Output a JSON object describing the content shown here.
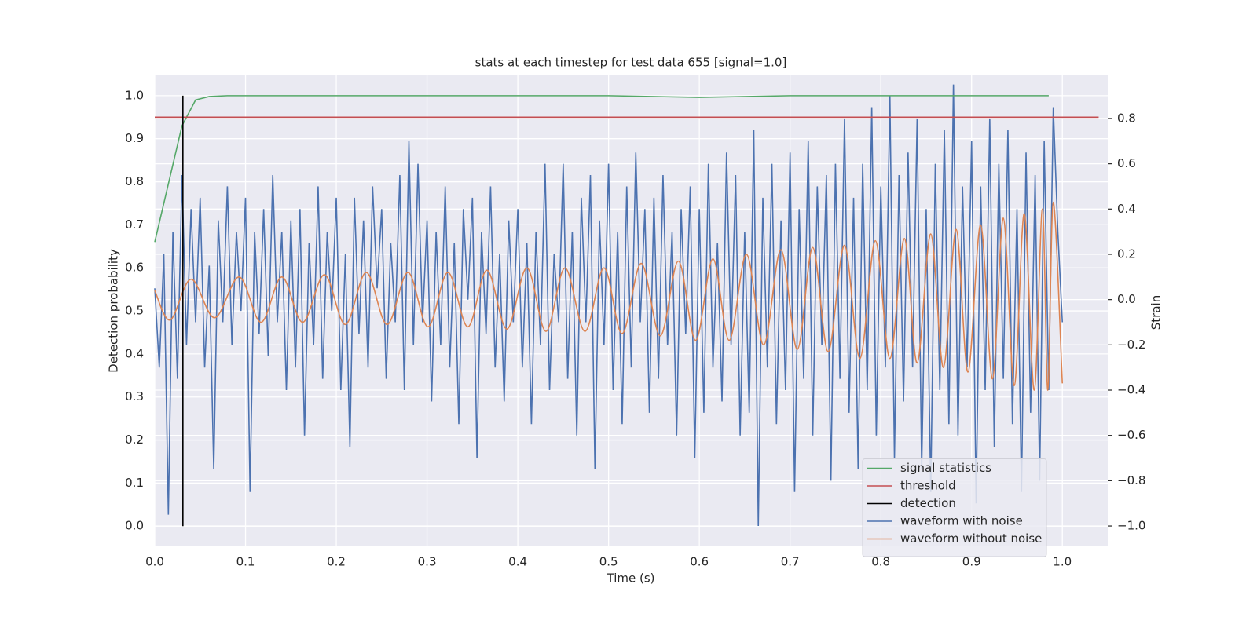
{
  "chart_data": {
    "type": "line",
    "title": "stats at each timestep for test data 655 [signal=1.0]",
    "xlabel": "Time (s)",
    "ylabel": "Detection probability",
    "y2label": "Strain",
    "xlim": [
      0,
      1.05
    ],
    "ylim": [
      -0.047,
      1.049
    ],
    "y2lim": [
      -1.09,
      0.994
    ],
    "xticks": [
      {
        "value": 0,
        "label": "0.0"
      },
      0.1,
      0.2,
      0.3,
      0.4,
      0.5,
      0.6,
      0.7,
      0.8,
      0.9,
      {
        "value": 1,
        "label": "1.0"
      }
    ],
    "yticks": [
      {
        "value": 0,
        "label": "0.0"
      },
      0.1,
      0.2,
      0.3,
      0.4,
      0.5,
      0.6,
      0.7,
      0.8,
      0.9,
      {
        "value": 1,
        "label": "1.0"
      }
    ],
    "y2ticks": [
      {
        "value": -1,
        "label": "−1.0"
      },
      {
        "value": -0.8,
        "label": "−0.8"
      },
      {
        "value": -0.6,
        "label": "−0.6"
      },
      {
        "value": -0.4,
        "label": "−0.4"
      },
      {
        "value": -0.2,
        "label": "−0.2"
      },
      {
        "value": 0,
        "label": "0.0"
      },
      0.2,
      0.4,
      0.6,
      0.8
    ],
    "grid": true,
    "legend": "lower right",
    "series": [
      {
        "name": "signal statistics",
        "color": "#55a868",
        "axis": "y",
        "x": [
          0,
          0.03,
          0.045,
          0.06,
          0.08,
          0.5,
          0.6,
          0.7,
          0.985
        ],
        "values": [
          0.66,
          0.93,
          0.99,
          0.998,
          1.0,
          1.0,
          0.996,
          1.0,
          1.0
        ]
      },
      {
        "name": "threshold",
        "color": "#c44e52",
        "axis": "y",
        "x": [
          0,
          1.04
        ],
        "values": [
          0.95,
          0.95
        ]
      },
      {
        "name": "detection",
        "color": "#000000",
        "axis": "y",
        "x": [
          0.031,
          0.031
        ],
        "values": [
          0,
          1
        ]
      },
      {
        "name": "waveform with noise",
        "color": "#4c72b0",
        "axis": "y2",
        "x": [
          0,
          0.005,
          0.01,
          0.015,
          0.02,
          0.025,
          0.03,
          0.035,
          0.04,
          0.045,
          0.05,
          0.055,
          0.06,
          0.065,
          0.07,
          0.075,
          0.08,
          0.085,
          0.09,
          0.095,
          0.1,
          0.105,
          0.11,
          0.115,
          0.12,
          0.125,
          0.13,
          0.135,
          0.14,
          0.145,
          0.15,
          0.155,
          0.16,
          0.165,
          0.17,
          0.175,
          0.18,
          0.185,
          0.19,
          0.195,
          0.2,
          0.205,
          0.21,
          0.215,
          0.22,
          0.225,
          0.23,
          0.235,
          0.24,
          0.245,
          0.25,
          0.255,
          0.26,
          0.265,
          0.27,
          0.275,
          0.28,
          0.285,
          0.29,
          0.295,
          0.3,
          0.305,
          0.31,
          0.315,
          0.32,
          0.325,
          0.33,
          0.335,
          0.34,
          0.345,
          0.35,
          0.355,
          0.36,
          0.365,
          0.37,
          0.375,
          0.38,
          0.385,
          0.39,
          0.395,
          0.4,
          0.405,
          0.41,
          0.415,
          0.42,
          0.425,
          0.43,
          0.435,
          0.44,
          0.445,
          0.45,
          0.455,
          0.46,
          0.465,
          0.47,
          0.475,
          0.48,
          0.485,
          0.49,
          0.495,
          0.5,
          0.505,
          0.51,
          0.515,
          0.52,
          0.525,
          0.53,
          0.535,
          0.54,
          0.545,
          0.55,
          0.555,
          0.56,
          0.565,
          0.57,
          0.575,
          0.58,
          0.585,
          0.59,
          0.595,
          0.6,
          0.605,
          0.61,
          0.615,
          0.62,
          0.625,
          0.63,
          0.635,
          0.64,
          0.645,
          0.65,
          0.655,
          0.66,
          0.665,
          0.67,
          0.675,
          0.68,
          0.685,
          0.69,
          0.695,
          0.7,
          0.705,
          0.71,
          0.715,
          0.72,
          0.725,
          0.73,
          0.735,
          0.74,
          0.745,
          0.75,
          0.755,
          0.76,
          0.765,
          0.77,
          0.775,
          0.78,
          0.785,
          0.79,
          0.795,
          0.8,
          0.805,
          0.81,
          0.815,
          0.82,
          0.825,
          0.83,
          0.835,
          0.84,
          0.845,
          0.85,
          0.855,
          0.86,
          0.865,
          0.87,
          0.875,
          0.88,
          0.885,
          0.89,
          0.895,
          0.9,
          0.905,
          0.91,
          0.915,
          0.92,
          0.925,
          0.93,
          0.935,
          0.94,
          0.945,
          0.95,
          0.955,
          0.96,
          0.965,
          0.97,
          0.975,
          0.98,
          0.985,
          0.99,
          0.995,
          1.0
        ],
        "values": [
          0.05,
          -0.3,
          0.2,
          -0.95,
          0.3,
          -0.35,
          0.55,
          -0.2,
          0.4,
          -0.1,
          0.45,
          -0.3,
          0.15,
          -0.75,
          0.35,
          -0.1,
          0.5,
          -0.2,
          0.3,
          -0.05,
          0.45,
          -0.85,
          0.3,
          -0.15,
          0.4,
          -0.25,
          0.55,
          -0.1,
          0.3,
          -0.4,
          0.35,
          -0.3,
          0.4,
          -0.6,
          0.25,
          -0.2,
          0.5,
          -0.35,
          0.3,
          -0.05,
          0.45,
          -0.4,
          0.2,
          -0.65,
          0.45,
          -0.15,
          0.35,
          -0.3,
          0.5,
          0.05,
          0.4,
          -0.35,
          0.25,
          -0.1,
          0.55,
          -0.4,
          0.7,
          -0.2,
          0.6,
          -0.1,
          0.35,
          -0.45,
          0.3,
          -0.2,
          0.5,
          -0.3,
          0.25,
          -0.55,
          0.4,
          0,
          0.45,
          -0.7,
          0.3,
          -0.15,
          0.5,
          -0.3,
          0.2,
          -0.45,
          0.35,
          -0.1,
          0.4,
          -0.3,
          0.25,
          -0.55,
          0.3,
          -0.2,
          0.6,
          -0.4,
          0.2,
          -0.1,
          0.6,
          -0.35,
          0.3,
          -0.6,
          0.45,
          -0.1,
          0.55,
          -0.75,
          0.35,
          -0.2,
          0.6,
          -0.4,
          0.3,
          -0.55,
          0.5,
          -0.3,
          0.65,
          -0.1,
          0.4,
          -0.5,
          0.45,
          -0.35,
          0.55,
          -0.2,
          0.3,
          -0.6,
          0.4,
          -0.15,
          0.5,
          -0.7,
          0.4,
          -0.5,
          0.6,
          -0.3,
          0.25,
          -0.45,
          0.65,
          -0.2,
          0.55,
          -0.6,
          0.3,
          -0.5,
          0.75,
          -1.0,
          0.45,
          -0.3,
          0.6,
          -0.55,
          0.35,
          -0.4,
          0.65,
          -0.85,
          0.4,
          -0.35,
          0.7,
          -0.6,
          0.5,
          -0.2,
          0.55,
          -0.8,
          0.6,
          -0.35,
          0.8,
          -0.5,
          0.45,
          -0.75,
          0.6,
          -0.4,
          0.85,
          -0.6,
          0.5,
          -0.3,
          0.9,
          -0.7,
          0.55,
          -0.45,
          0.65,
          -0.3,
          0.8,
          -0.75,
          0.4,
          -0.85,
          0.6,
          -0.4,
          0.75,
          -0.55,
          0.95,
          -0.6,
          0.5,
          -0.3,
          0.7,
          -0.9,
          0.5,
          -0.4,
          0.8,
          -0.65,
          0.6,
          -0.35,
          0.75,
          -0.55,
          0.4,
          -0.85,
          0.65,
          -0.5,
          0.55,
          -0.8,
          0.7,
          -0.4,
          0.85,
          0.3,
          -0.1
        ]
      },
      {
        "name": "waveform without noise",
        "color": "#dd8452",
        "axis": "y2",
        "smooth": true,
        "x": [
          0,
          0.017,
          0.04,
          0.066,
          0.093,
          0.117,
          0.14,
          0.163,
          0.187,
          0.21,
          0.233,
          0.256,
          0.279,
          0.301,
          0.323,
          0.345,
          0.366,
          0.388,
          0.41,
          0.431,
          0.452,
          0.474,
          0.495,
          0.515,
          0.536,
          0.557,
          0.577,
          0.596,
          0.615,
          0.633,
          0.652,
          0.671,
          0.69,
          0.708,
          0.725,
          0.742,
          0.76,
          0.777,
          0.794,
          0.81,
          0.826,
          0.84,
          0.855,
          0.869,
          0.883,
          0.896,
          0.91,
          0.923,
          0.935,
          0.947,
          0.958,
          0.969,
          0.978,
          0.984,
          0.99,
          1.0
        ],
        "values": [
          0.04,
          -0.09,
          0.09,
          -0.08,
          0.1,
          -0.1,
          0.1,
          -0.1,
          0.11,
          -0.11,
          0.12,
          -0.11,
          0.12,
          -0.12,
          0.12,
          -0.12,
          0.13,
          -0.13,
          0.14,
          -0.14,
          0.14,
          -0.14,
          0.14,
          -0.15,
          0.16,
          -0.16,
          0.17,
          -0.18,
          0.18,
          -0.18,
          0.2,
          -0.2,
          0.22,
          -0.22,
          0.23,
          -0.23,
          0.24,
          -0.26,
          0.26,
          -0.26,
          0.27,
          -0.28,
          0.29,
          -0.3,
          0.31,
          -0.32,
          0.33,
          -0.35,
          0.36,
          -0.38,
          0.38,
          -0.4,
          0.4,
          -0.4,
          0.43,
          -0.37
        ]
      }
    ]
  }
}
